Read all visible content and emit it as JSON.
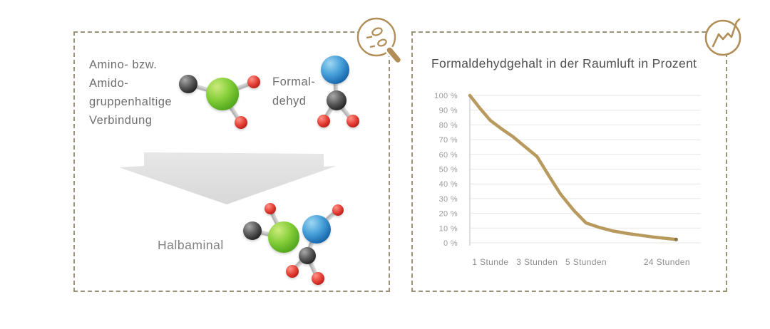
{
  "left_panel": {
    "icon": "magnifier-molecules-icon",
    "reactant_lines": [
      "Amino- bzw.",
      "Amido-",
      "gruppenhaltige",
      "Verbindung"
    ],
    "formaldehyde_lines": [
      "Formal-",
      "dehyd"
    ],
    "product_label": "Halbaminal"
  },
  "right_panel": {
    "icon": "trend-line-icon"
  },
  "chart_data": {
    "type": "line",
    "title": "Formaldehydgehalt in der Raumluft in Prozent",
    "xlabel": "",
    "ylabel": "",
    "ylim": [
      0,
      100
    ],
    "grid": true,
    "legend": "none",
    "categories": [
      "1 Stunde",
      "3 Stunden",
      "5 Stunden",
      "24 Stunden"
    ],
    "values": [
      83,
      58,
      13,
      2
    ],
    "start_value": 100,
    "y_ticks": [
      {
        "label": "100 %",
        "value": 100
      },
      {
        "label": "90 %",
        "value": 90
      },
      {
        "label": "80 %",
        "value": 80
      },
      {
        "label": "70 %",
        "value": 70
      },
      {
        "label": "60 %",
        "value": 60
      },
      {
        "label": "50 %",
        "value": 50
      },
      {
        "label": "40 %",
        "value": 40
      },
      {
        "label": "30 %",
        "value": 30
      },
      {
        "label": "20 %",
        "value": 20
      },
      {
        "label": "10 %",
        "value": 10
      },
      {
        "label": "0 %",
        "value": 0
      }
    ],
    "x_labels": [
      {
        "label": "1 Stunde",
        "pos": 0.089
      },
      {
        "label": "3 Stunden",
        "pos": 0.291
      },
      {
        "label": "5 Stunden",
        "pos": 0.503
      },
      {
        "label": "24 Stunden",
        "pos": 0.853
      }
    ],
    "curve": [
      [
        0,
        100
      ],
      [
        0.045,
        91
      ],
      [
        0.089,
        83
      ],
      [
        0.14,
        77
      ],
      [
        0.187,
        72
      ],
      [
        0.24,
        65
      ],
      [
        0.291,
        58.5
      ],
      [
        0.34,
        46
      ],
      [
        0.393,
        33
      ],
      [
        0.45,
        22
      ],
      [
        0.503,
        13.5
      ],
      [
        0.56,
        10.5
      ],
      [
        0.62,
        8
      ],
      [
        0.684,
        6.3
      ],
      [
        0.79,
        4
      ],
      [
        0.893,
        2.3
      ]
    ],
    "line_color": "#b89a5f",
    "line_tip_color": "#8c7743",
    "grid_color": "#e9e6e2",
    "axis_color": "#ccc8cb",
    "tick_color": "#9a9a9a",
    "label_color": "#8d8d8d",
    "title_color": "#4f4f4f"
  },
  "colors": {
    "panel_border": "#9b9377",
    "icon_gold": "#b18e58",
    "text_gray": "#6f6f6f",
    "arrow_gray": "#e0e0e0"
  }
}
